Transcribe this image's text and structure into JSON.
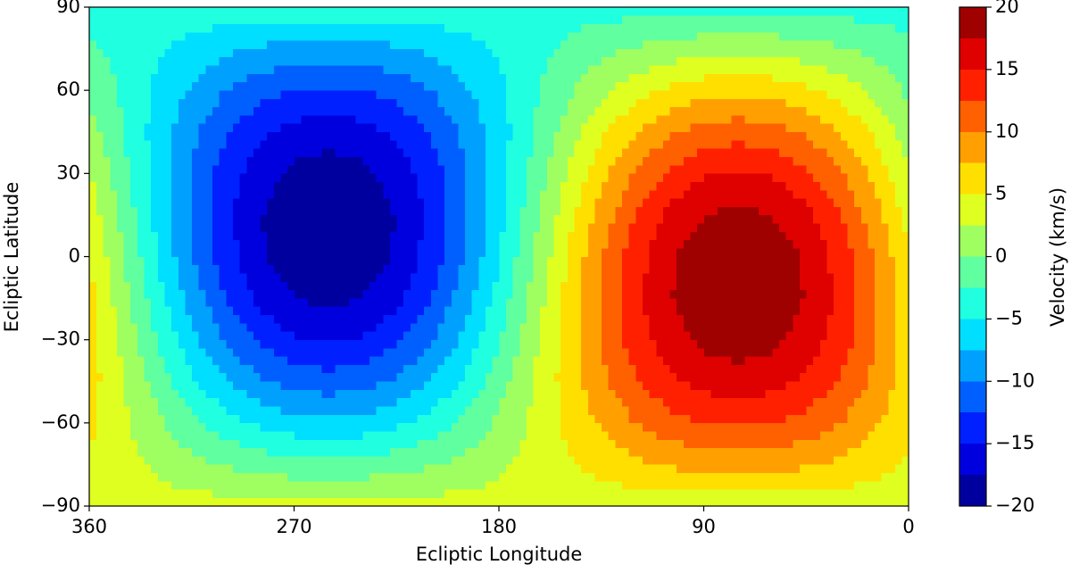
{
  "chart_data": {
    "type": "contour",
    "xlabel": "Ecliptic Longitude",
    "ylabel": "Ecliptic Latitude",
    "colorbar_label": "Velocity (km/s)",
    "xlim": [
      360,
      0
    ],
    "xticks": [
      360,
      270,
      180,
      90,
      0
    ],
    "ylim": [
      -90,
      90
    ],
    "yticks": [
      {
        "value": -90,
        "label": "−90"
      },
      {
        "value": -60,
        "label": "−60"
      },
      {
        "value": -30,
        "label": "−30"
      },
      0,
      30,
      60,
      90
    ],
    "levels": [
      -20,
      -17.5,
      -15,
      -12.5,
      -10,
      -7.5,
      -5,
      -2.5,
      0,
      2.5,
      5,
      7.5,
      10,
      12.5,
      15,
      17.5,
      20
    ],
    "colors": [
      "#00009f",
      "#0000df",
      "#0020ff",
      "#0060ff",
      "#00a0ff",
      "#00dfff",
      "#20ffdf",
      "#60ffa0",
      "#a0ff60",
      "#dfff20",
      "#ffdf00",
      "#ffa000",
      "#ff6000",
      "#ff2000",
      "#df0000",
      "#9f0000"
    ],
    "colorbar_ticks": [
      {
        "value": -20,
        "label": "−20"
      },
      {
        "value": -15,
        "label": "−15"
      },
      {
        "value": -10,
        "label": "−10"
      },
      {
        "value": -5,
        "label": "−5"
      },
      0,
      5,
      10,
      15,
      20
    ],
    "x": [
      0,
      15,
      30,
      45,
      60,
      75,
      90,
      105,
      120,
      135,
      150,
      165,
      180,
      195,
      210,
      225,
      240,
      255,
      270,
      285,
      300,
      315,
      330,
      345,
      360
    ],
    "y": [
      -90,
      -75,
      -60,
      -45,
      -30,
      -15,
      0,
      15,
      30,
      45,
      60,
      75,
      90
    ],
    "z": [
      [
        3.5,
        3.5,
        3.5,
        3.5,
        3.5,
        3.5,
        3.5,
        3.5,
        3.5,
        3.5,
        3.5,
        3.5,
        3.5,
        3.5,
        3.5,
        3.5,
        3.5,
        3.5,
        3.5,
        3.5,
        3.5,
        3.5,
        3.5,
        3.5,
        3.5
      ],
      [
        4.7,
        5.9,
        7.0,
        7.8,
        8.3,
        8.5,
        8.3,
        7.8,
        7.0,
        5.9,
        4.7,
        3.4,
        2.0,
        0.8,
        -0.2,
        -1.1,
        -1.6,
        -1.7,
        -1.6,
        -1.1,
        -0.2,
        0.8,
        2.0,
        3.4,
        4.7
      ],
      [
        5.6,
        7.9,
        10.0,
        11.5,
        12.5,
        12.9,
        12.5,
        11.5,
        10.0,
        7.9,
        5.6,
        3.0,
        0.5,
        -1.9,
        -4.0,
        -5.5,
        -6.5,
        -6.8,
        -6.5,
        -5.5,
        -4.0,
        -1.9,
        0.5,
        3.0,
        5.6
      ],
      [
        6.1,
        9.4,
        12.3,
        14.5,
        15.9,
        16.4,
        15.9,
        14.5,
        12.3,
        9.4,
        6.1,
        2.5,
        -1.1,
        -4.5,
        -7.4,
        -9.6,
        -11.0,
        -11.5,
        -11.0,
        -9.6,
        -7.4,
        -4.5,
        -1.1,
        2.5,
        6.1
      ],
      [
        6.2,
        10.3,
        13.8,
        16.5,
        18.2,
        18.8,
        18.2,
        16.5,
        13.8,
        10.3,
        6.2,
        1.7,
        -2.7,
        -6.8,
        -10.3,
        -13.0,
        -14.7,
        -15.3,
        -14.7,
        -13.0,
        -10.3,
        -6.8,
        -2.7,
        1.7,
        6.2
      ],
      [
        5.8,
        10.4,
        14.4,
        17.4,
        19.3,
        19.9,
        19.3,
        17.4,
        14.4,
        10.4,
        5.8,
        0.9,
        -4.0,
        -8.6,
        -12.6,
        -15.6,
        -17.5,
        -18.1,
        -17.5,
        -15.6,
        -12.6,
        -8.6,
        -4.0,
        0.9,
        5.8
      ],
      [
        5.1,
        9.8,
        13.9,
        17.1,
        19.0,
        19.7,
        19.0,
        17.1,
        13.9,
        9.8,
        5.1,
        0,
        -5.1,
        -9.8,
        -13.9,
        -17.1,
        -19.0,
        -19.7,
        -19.0,
        -17.1,
        -13.9,
        -9.8,
        -5.1,
        0,
        5.1
      ],
      [
        4.0,
        8.6,
        12.6,
        15.6,
        17.5,
        18.1,
        17.5,
        15.6,
        12.6,
        8.6,
        4.0,
        -0.9,
        -5.8,
        -10.4,
        -14.4,
        -17.4,
        -19.3,
        -19.9,
        -19.3,
        -17.4,
        -14.4,
        -10.4,
        -5.8,
        -0.9,
        4.0
      ],
      [
        2.7,
        6.8,
        10.3,
        13.0,
        14.7,
        15.3,
        14.7,
        13.0,
        10.3,
        6.8,
        2.7,
        -1.7,
        -6.2,
        -10.3,
        -13.8,
        -16.5,
        -18.2,
        -18.8,
        -18.2,
        -16.5,
        -13.8,
        -10.3,
        -6.2,
        -1.7,
        2.7
      ],
      [
        1.1,
        4.5,
        7.4,
        9.6,
        11.0,
        11.5,
        11.0,
        9.6,
        7.4,
        4.5,
        1.1,
        -2.5,
        -6.1,
        -9.4,
        -12.3,
        -14.5,
        -15.9,
        -16.4,
        -15.9,
        -14.5,
        -12.3,
        -9.4,
        -6.1,
        -2.5,
        1.1
      ],
      [
        -0.5,
        1.9,
        4.0,
        5.5,
        6.5,
        6.8,
        6.5,
        5.5,
        4.0,
        1.9,
        -0.5,
        -3.0,
        -5.6,
        -7.9,
        -10.0,
        -11.5,
        -12.5,
        -12.9,
        -12.5,
        -11.5,
        -10.0,
        -7.9,
        -5.6,
        -3.0,
        -0.5
      ],
      [
        -2.0,
        -0.8,
        0.2,
        1.1,
        1.6,
        1.7,
        1.6,
        1.1,
        0.2,
        -0.8,
        -2.0,
        -3.4,
        -4.7,
        -5.9,
        -7.0,
        -7.8,
        -8.3,
        -8.5,
        -8.3,
        -7.8,
        -7.0,
        -5.9,
        -4.7,
        -3.4,
        -2.0
      ],
      [
        -3.5,
        -3.5,
        -3.5,
        -3.5,
        -3.5,
        -3.5,
        -3.5,
        -3.5,
        -3.5,
        -3.5,
        -3.5,
        -3.5,
        -3.5,
        -3.5,
        -3.5,
        -3.5,
        -3.5,
        -3.5,
        -3.5,
        -3.5,
        -3.5,
        -3.5,
        -3.5,
        -3.5,
        -3.5
      ]
    ]
  }
}
